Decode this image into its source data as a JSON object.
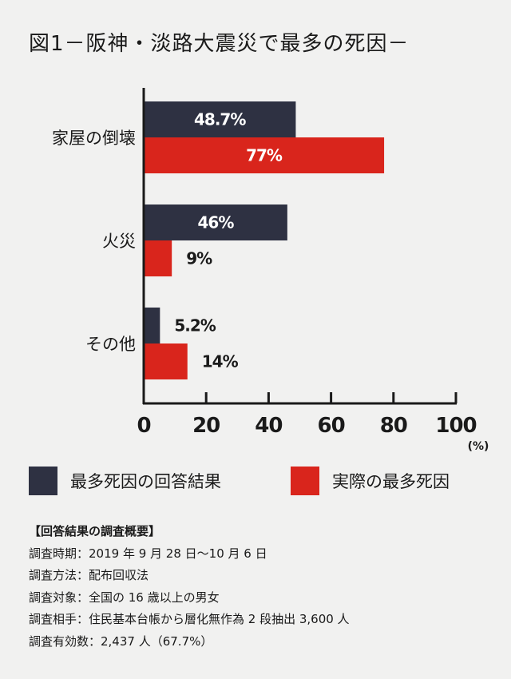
{
  "title": "図1－阪神・淡路大震災で最多の死因－",
  "chart_data": {
    "type": "bar",
    "orientation": "horizontal",
    "categories": [
      "家屋の倒壊",
      "火災",
      "その他"
    ],
    "series": [
      {
        "name": "最多死因の回答結果",
        "values": [
          48.7,
          46,
          5.2
        ],
        "labels": [
          "48.7%",
          "46%",
          "5.2%"
        ],
        "color": "#2e3142"
      },
      {
        "name": "実際の最多死因",
        "values": [
          77,
          9,
          14
        ],
        "labels": [
          "77%",
          "9%",
          "14%"
        ],
        "color": "#d9251c"
      }
    ],
    "xlim": [
      0,
      100
    ],
    "xticks": [
      "0",
      "20",
      "40",
      "60",
      "80",
      "100"
    ],
    "xunit": "(%)",
    "grid": false,
    "legend_position": "bottom"
  },
  "legend": [
    {
      "label": "最多死因の回答結果",
      "color": "#2e3142"
    },
    {
      "label": "実際の最多死因",
      "color": "#d9251c"
    }
  ],
  "summary": {
    "heading": "【回答結果の調査概要】",
    "lines": [
      "調査時期：2019 年 9 月 28 日～10 月 6 日",
      "調査方法：配布回収法",
      "調査対象：全国の 16 歳以上の男女",
      "調査相手：住民基本台帳から層化無作為 2 段抽出 3,600 人",
      "調査有効数：2,437 人（67.7%）"
    ]
  }
}
